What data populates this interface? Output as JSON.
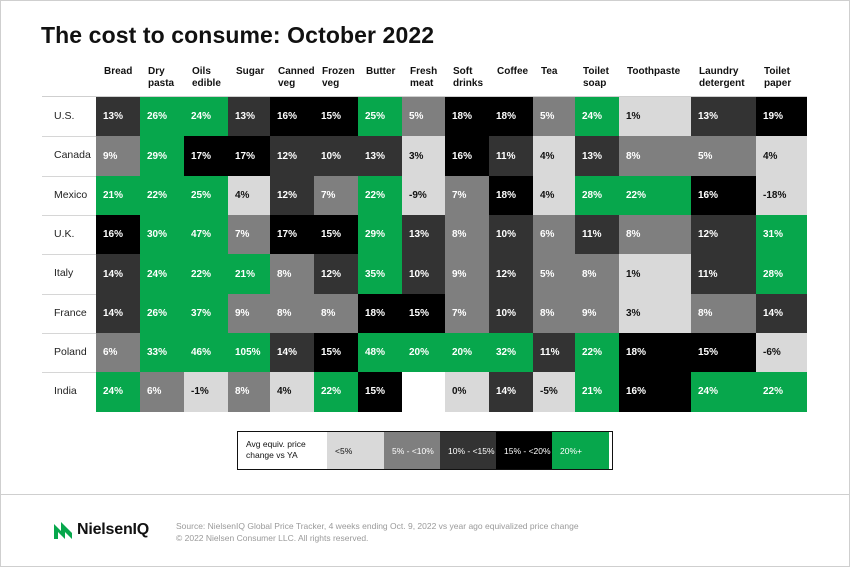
{
  "title": "The cost to consume: October 2022",
  "chart_data": {
    "type": "heatmap",
    "title": "The cost to consume: October 2022",
    "columns": [
      "Bread",
      "Dry\npasta",
      "Oils\nedible",
      "Sugar",
      "Canned\nveg",
      "Frozen\nveg",
      "Butter",
      "Fresh\nmeat",
      "Soft\ndrinks",
      "Coffee",
      "Tea",
      "Toilet\nsoap",
      "Toothpaste",
      "Laundry\ndetergent",
      "Toilet\npaper"
    ],
    "rows": [
      {
        "label": "U.S.",
        "values": [
          13,
          26,
          24,
          13,
          16,
          15,
          25,
          5,
          18,
          18,
          5,
          24,
          1,
          13,
          19
        ]
      },
      {
        "label": "Canada",
        "values": [
          9,
          29,
          17,
          17,
          12,
          10,
          13,
          3,
          16,
          11,
          4,
          13,
          8,
          5,
          4
        ]
      },
      {
        "label": "Mexico",
        "values": [
          21,
          22,
          25,
          4,
          12,
          7,
          22,
          -9,
          7,
          18,
          4,
          28,
          22,
          16,
          -18
        ]
      },
      {
        "label": "U.K.",
        "values": [
          16,
          30,
          47,
          7,
          17,
          15,
          29,
          13,
          8,
          10,
          6,
          11,
          8,
          12,
          31
        ]
      },
      {
        "label": "Italy",
        "values": [
          14,
          24,
          22,
          21,
          8,
          12,
          35,
          10,
          9,
          12,
          5,
          8,
          1,
          11,
          28
        ]
      },
      {
        "label": "France",
        "values": [
          14,
          26,
          37,
          9,
          8,
          8,
          18,
          15,
          7,
          10,
          8,
          9,
          3,
          8,
          14
        ]
      },
      {
        "label": "Poland",
        "values": [
          6,
          33,
          46,
          105,
          14,
          15,
          48,
          20,
          20,
          32,
          11,
          22,
          18,
          15,
          -6
        ]
      },
      {
        "label": "India",
        "values": [
          24,
          6,
          -1,
          8,
          4,
          22,
          15,
          null,
          0,
          14,
          -5,
          21,
          16,
          24,
          22
        ]
      }
    ],
    "value_suffix": "%",
    "legend": {
      "label": "Avg equiv. price change vs YA",
      "bins": [
        {
          "label": "<5%",
          "min": null,
          "max": 5,
          "color": "#d9d9d9",
          "text": "#111111"
        },
        {
          "label": "5% - <10%",
          "min": 5,
          "max": 10,
          "color": "#7f7f7f",
          "text": "#ffffff"
        },
        {
          "label": "10% - <15%",
          "min": 10,
          "max": 15,
          "color": "#333333",
          "text": "#ffffff"
        },
        {
          "label": "15% - <20%",
          "min": 15,
          "max": 20,
          "color": "#000000",
          "text": "#ffffff"
        },
        {
          "label": "20%+",
          "min": 20,
          "max": null,
          "color": "#07a74c",
          "text": "#ffffff"
        }
      ]
    }
  },
  "footer": {
    "logo_text": "NielsenIQ",
    "source_line1": "Source: NielsenIQ Global Price Tracker, 4 weeks ending Oct. 9, 2022 vs year ago equivalized price change",
    "source_line2": "© 2022 Nielsen Consumer LLC. All rights reserved."
  },
  "colors": {
    "accent": "#07a74c",
    "null_cell": "#ffffff"
  }
}
